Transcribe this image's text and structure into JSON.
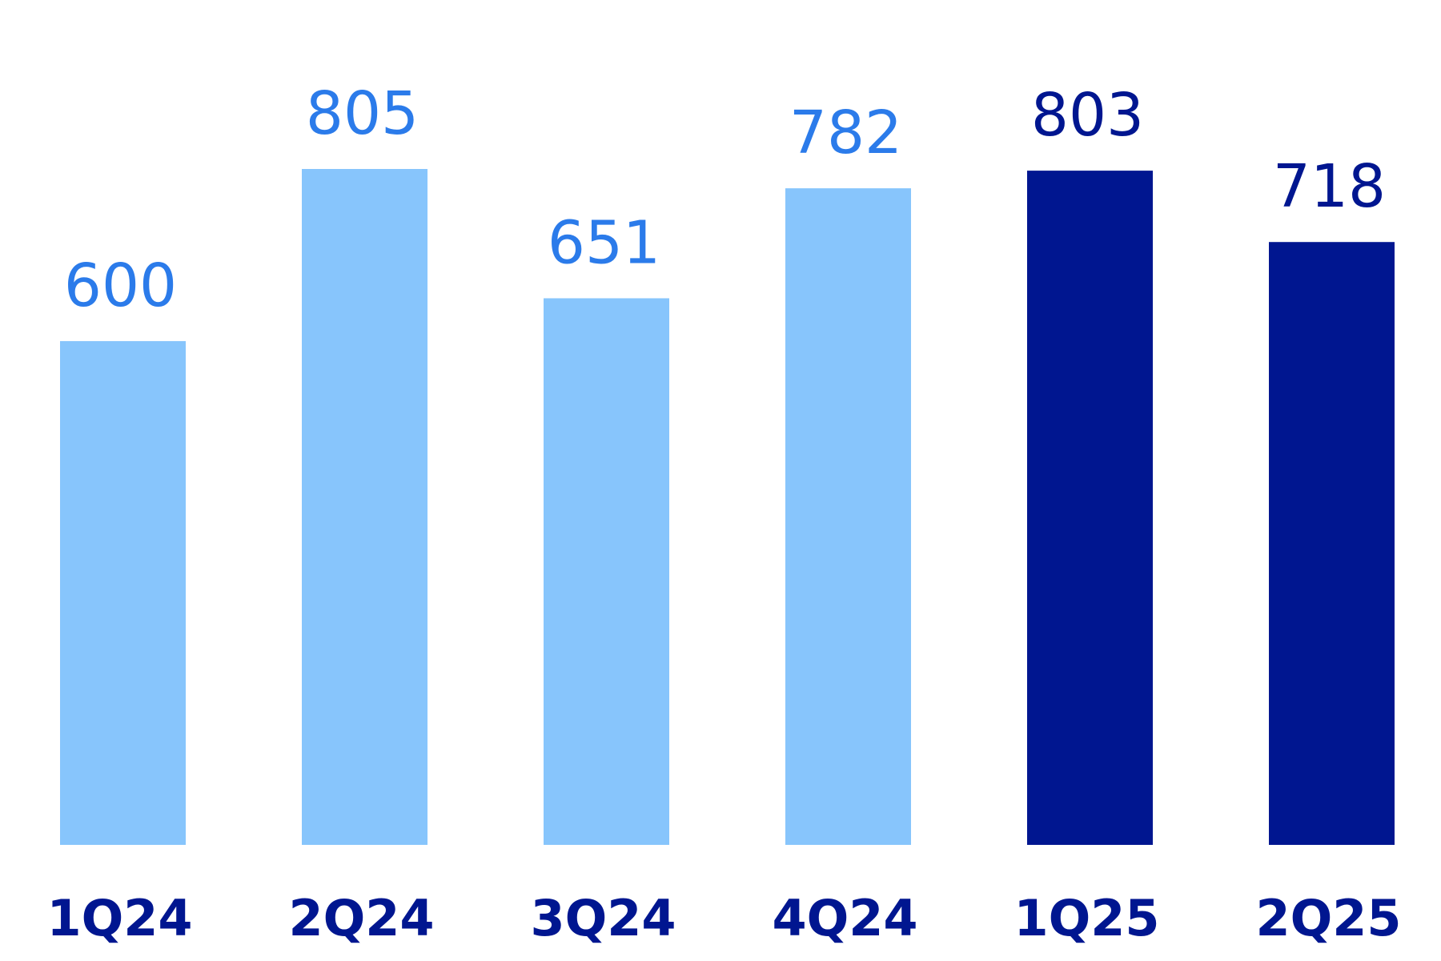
{
  "chart_data": {
    "type": "bar",
    "title": "",
    "xlabel": "",
    "ylabel": "",
    "ylim": [
      0,
      805
    ],
    "grid": false,
    "legend": "none",
    "categories": [
      "1Q24",
      "2Q24",
      "3Q24",
      "4Q24",
      "1Q25",
      "2Q25"
    ],
    "values": [
      600,
      805,
      651,
      782,
      803,
      718
    ],
    "value_labels": [
      "600",
      "805",
      "651",
      "782",
      "803",
      "718"
    ],
    "bar_colors": [
      "#87C5FC",
      "#87C5FC",
      "#87C5FC",
      "#87C5FC",
      "#001690",
      "#001690"
    ],
    "value_label_colors": [
      "#2B7BEA",
      "#2B7BEA",
      "#2B7BEA",
      "#2B7BEA",
      "#001690",
      "#001690"
    ],
    "category_label_color": "#001690"
  }
}
